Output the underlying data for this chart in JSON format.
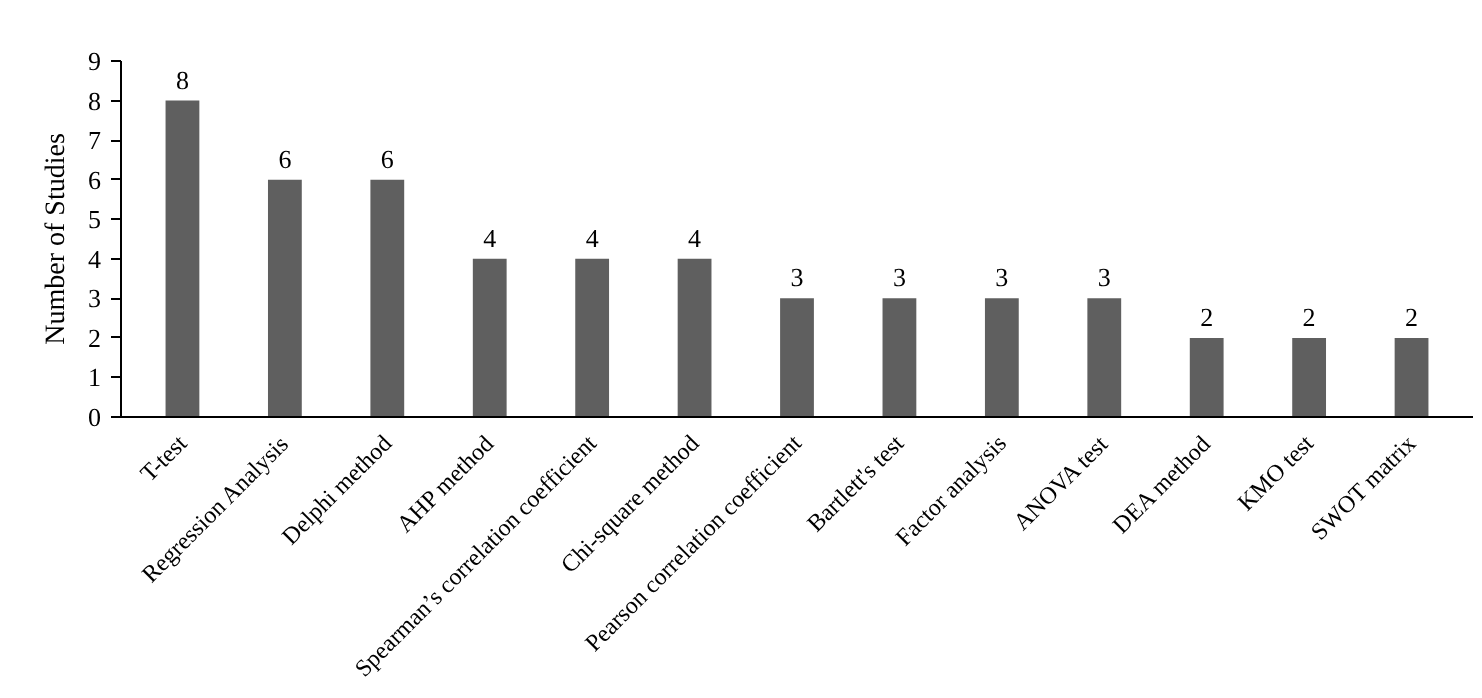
{
  "chart_data": {
    "type": "bar",
    "ylabel": "Number of Studies",
    "categories": [
      "T-test",
      "Regression Analysis",
      "Delphi method",
      "AHP method",
      "Spearman’s correlation coefficient",
      "Chi-square method",
      "Pearson correlation coefficient",
      "Bartlett's test",
      "Factor analysis",
      "ANOVA test",
      "DEA method",
      "KMO test",
      "SWOT matrix"
    ],
    "values": [
      8,
      6,
      6,
      4,
      4,
      4,
      3,
      3,
      3,
      3,
      2,
      2,
      2
    ],
    "color": "#5f5f5f",
    "ylim": [
      0,
      9
    ],
    "yticks": [
      0,
      1,
      2,
      3,
      4,
      5,
      6,
      7,
      8,
      9
    ],
    "grid": false,
    "data_labels": true
  }
}
